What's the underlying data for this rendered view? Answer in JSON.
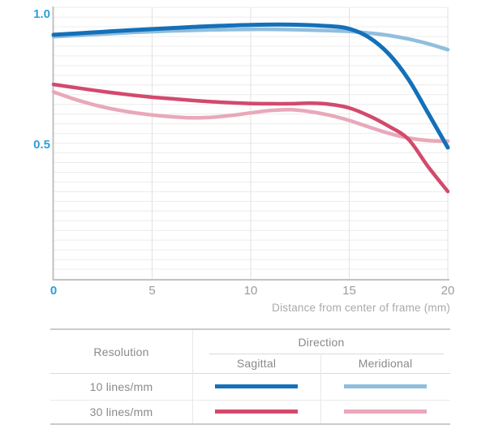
{
  "chart_data": {
    "type": "line",
    "title": "",
    "xlabel": "Distance from center of frame (mm)",
    "ylabel": "",
    "xlim": [
      0,
      20
    ],
    "ylim": [
      0,
      1.04
    ],
    "x_ticks": [
      0,
      5,
      10,
      15,
      20
    ],
    "x_tick_labels": [
      "0",
      "5",
      "10",
      "15",
      "20"
    ],
    "y_ticks": [
      1.0,
      0.5
    ],
    "y_tick_labels": [
      "1.0",
      "0.5"
    ],
    "grid": "on",
    "legend_position": "table-below-chart",
    "series": [
      {
        "name": "10 lines/mm Meridional",
        "resolution": "10 lines/mm",
        "direction": "Meridional",
        "color": "#90bede",
        "stroke_width": 4.5,
        "points": [
          [
            0,
            0.928
          ],
          [
            2,
            0.936
          ],
          [
            4,
            0.944
          ],
          [
            6,
            0.95
          ],
          [
            8,
            0.954
          ],
          [
            10,
            0.956
          ],
          [
            12,
            0.955
          ],
          [
            14,
            0.951
          ],
          [
            15,
            0.948
          ],
          [
            16,
            0.942
          ],
          [
            17,
            0.933
          ],
          [
            18,
            0.919
          ],
          [
            19,
            0.901
          ],
          [
            20,
            0.878
          ]
        ]
      },
      {
        "name": "30 lines/mm Meridional",
        "resolution": "30 lines/mm",
        "direction": "Meridional",
        "color": "#e9a8ba",
        "stroke_width": 4.5,
        "points": [
          [
            0,
            0.716
          ],
          [
            1,
            0.69
          ],
          [
            2,
            0.668
          ],
          [
            3,
            0.651
          ],
          [
            4,
            0.638
          ],
          [
            5,
            0.628
          ],
          [
            6,
            0.621
          ],
          [
            7,
            0.617
          ],
          [
            8,
            0.619
          ],
          [
            9,
            0.626
          ],
          [
            10,
            0.636
          ],
          [
            11,
            0.645
          ],
          [
            12,
            0.648
          ],
          [
            13,
            0.641
          ],
          [
            14,
            0.627
          ],
          [
            15,
            0.607
          ],
          [
            16,
            0.582
          ],
          [
            17,
            0.558
          ],
          [
            18,
            0.54
          ],
          [
            19,
            0.53
          ],
          [
            20,
            0.528
          ]
        ]
      },
      {
        "name": "30 lines/mm Sagittal",
        "resolution": "30 lines/mm",
        "direction": "Sagittal",
        "color": "#d24a6d",
        "stroke_width": 4.5,
        "points": [
          [
            0,
            0.745
          ],
          [
            1,
            0.734
          ],
          [
            2,
            0.723
          ],
          [
            3,
            0.713
          ],
          [
            4,
            0.704
          ],
          [
            5,
            0.696
          ],
          [
            6,
            0.69
          ],
          [
            7,
            0.684
          ],
          [
            8,
            0.679
          ],
          [
            9,
            0.675
          ],
          [
            10,
            0.672
          ],
          [
            11,
            0.671
          ],
          [
            12,
            0.671
          ],
          [
            13,
            0.673
          ],
          [
            14,
            0.669
          ],
          [
            15,
            0.655
          ],
          [
            16,
            0.625
          ],
          [
            17,
            0.585
          ],
          [
            18,
            0.535
          ],
          [
            19,
            0.43
          ],
          [
            20,
            0.335
          ]
        ]
      },
      {
        "name": "10 lines/mm Sagittal",
        "resolution": "10 lines/mm",
        "direction": "Sagittal",
        "color": "#1470b8",
        "stroke_width": 5,
        "points": [
          [
            0,
            0.935
          ],
          [
            2,
            0.944
          ],
          [
            4,
            0.953
          ],
          [
            6,
            0.961
          ],
          [
            8,
            0.968
          ],
          [
            10,
            0.973
          ],
          [
            12,
            0.974
          ],
          [
            14,
            0.968
          ],
          [
            15,
            0.958
          ],
          [
            16,
            0.925
          ],
          [
            17,
            0.862
          ],
          [
            18,
            0.765
          ],
          [
            19,
            0.635
          ],
          [
            20,
            0.503
          ]
        ]
      }
    ]
  },
  "table": {
    "col_resolution": "Resolution",
    "col_direction": "Direction",
    "col_sagittal": "Sagittal",
    "col_meridional": "Meridional",
    "rows": [
      {
        "label": "10 lines/mm",
        "sagittal_color": "#1470b8",
        "meridional_color": "#90bede"
      },
      {
        "label": "30 lines/mm",
        "sagittal_color": "#d24a6d",
        "meridional_color": "#e9a8ba"
      }
    ]
  },
  "colors": {
    "tick_accent": "#2f9fd6",
    "tick_grey": "#9b9b9b",
    "caption_grey": "#a9a9a9",
    "axis_line": "#c2c2c2",
    "grid_horizontal": "#ececec",
    "grid_vertical": "#e2e2e2",
    "table_border": "#cbcbcb"
  }
}
